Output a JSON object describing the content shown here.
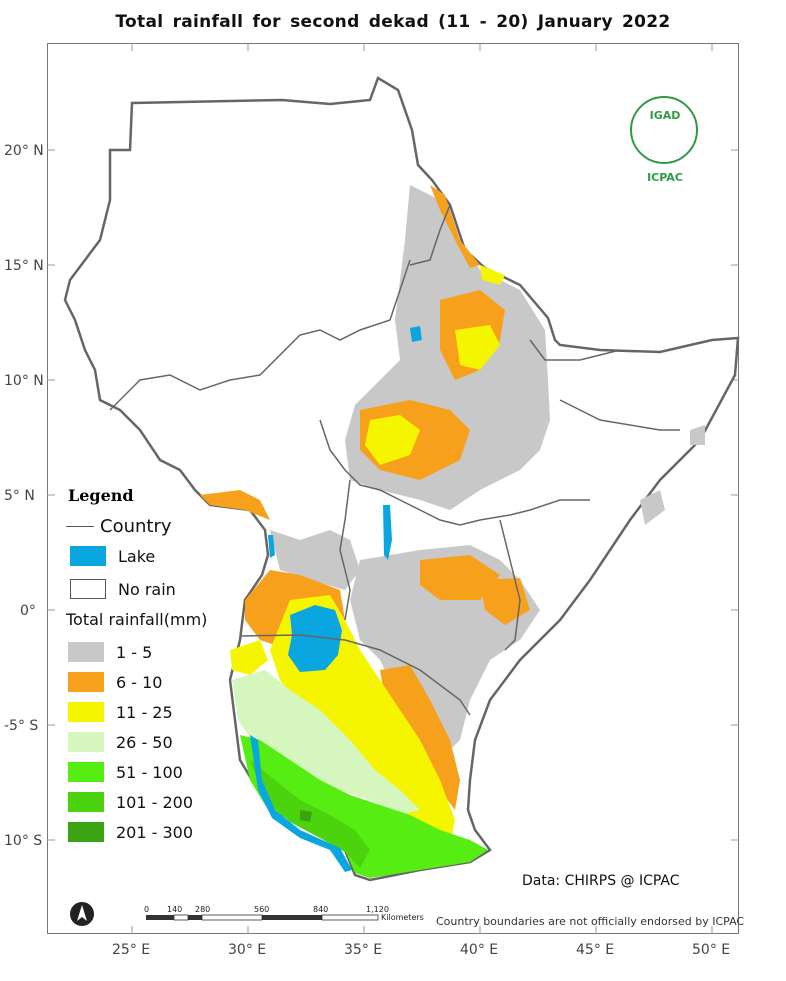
{
  "title": "Total rainfall  for   second  dekad (11 - 20)  January 2022",
  "y_axis_labels": [
    "20° N",
    "15° N",
    "10° N",
    "5° N",
    "0°",
    "-5° S",
    "10° S"
  ],
  "x_axis_labels": [
    "25° E",
    "30° E",
    "35° E",
    "40° E",
    "45° E",
    "50° E"
  ],
  "legend": {
    "title": "Legend",
    "country": "Country",
    "lake": "Lake",
    "no_rain": "No rain",
    "rainfall_title": "Total rainfall(mm)",
    "classes": [
      {
        "label": "1 - 5",
        "color": "#c8c8c8"
      },
      {
        "label": "6 - 10",
        "color": "#f7a01c"
      },
      {
        "label": "11 - 25",
        "color": "#f5f500"
      },
      {
        "label": "26 - 50",
        "color": "#d5f6bd"
      },
      {
        "label": "51 - 100",
        "color": "#56ee12"
      },
      {
        "label": "101 - 200",
        "color": "#4bd40e"
      },
      {
        "label": "201 - 300",
        "color": "#3aa312"
      }
    ],
    "lake_color": "#0aa6e0"
  },
  "scale_bar": {
    "ticks": [
      "0",
      "140",
      "280",
      "560",
      "840",
      "1,120"
    ],
    "unit": "Kilometers"
  },
  "credit": "Data: CHIRPS @ ICPAC",
  "disclaimer": "Country boundaries are not officially endorsed by ICPAC",
  "logo": {
    "top_text": "IGAD",
    "bottom_text": "ICPAC",
    "color": "#2f9a45"
  }
}
